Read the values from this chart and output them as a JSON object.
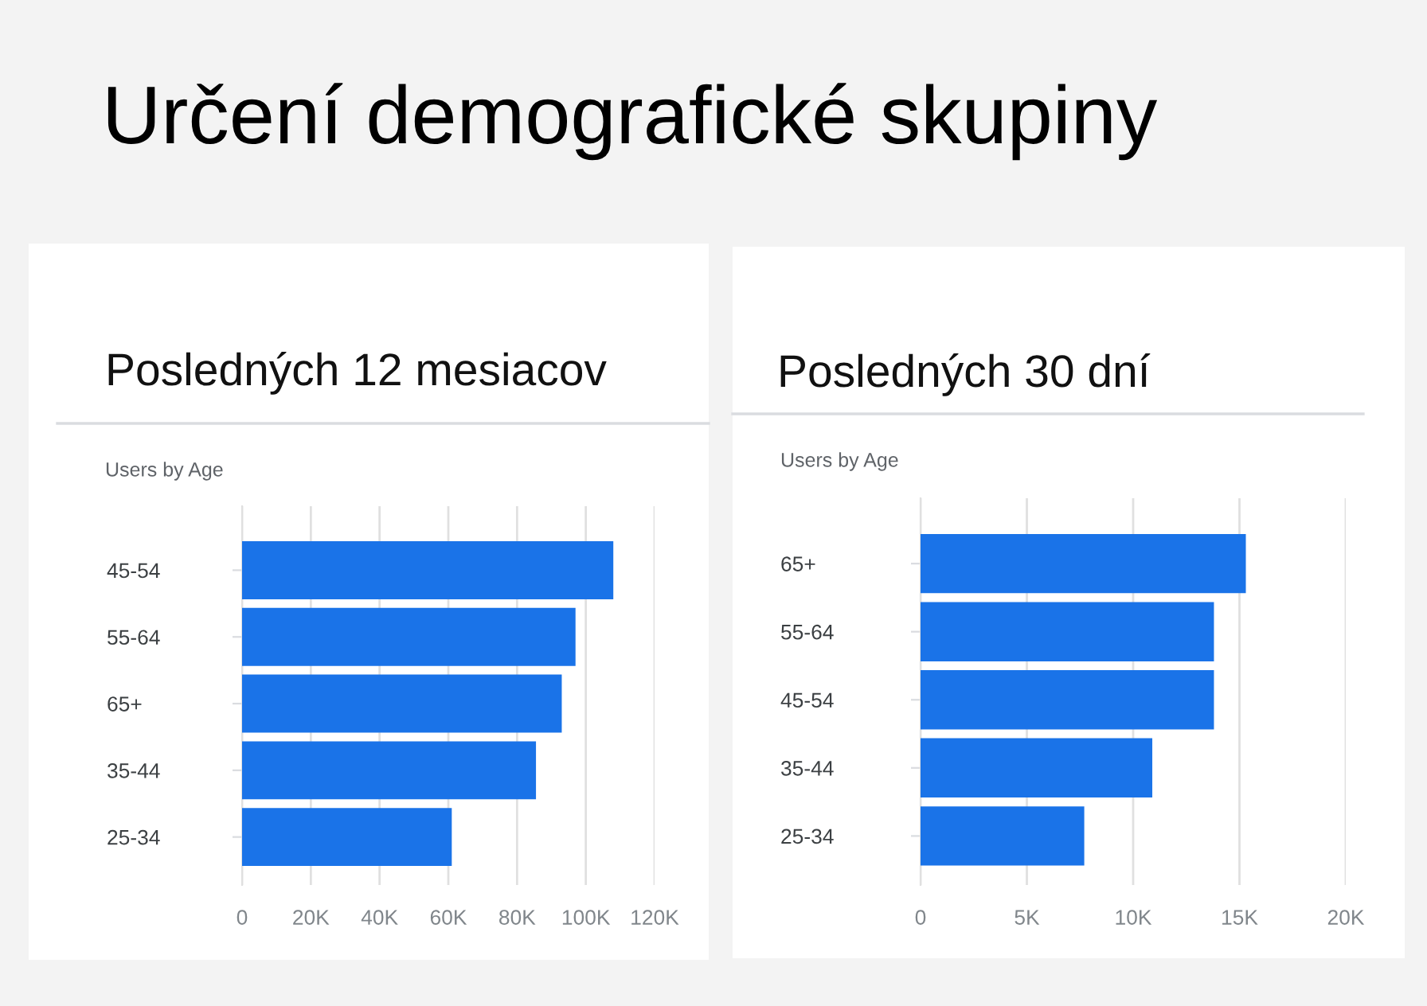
{
  "chart_data": [
    {
      "type": "bar",
      "orientation": "horizontal",
      "title": "Posledných 12 mesiacov",
      "subtitle": "Users by Age",
      "annotations": [
        "Určení demografické skupiny"
      ],
      "categories": [
        "45-54",
        "55-64",
        "65+",
        "35-44",
        "25-34"
      ],
      "values": [
        108000,
        97000,
        93000,
        85500,
        61000
      ],
      "color": "#1a73e8",
      "xlim": [
        0,
        120000
      ],
      "xticks": [
        0,
        {
          "value": 20000,
          "label": "20K"
        },
        {
          "value": 40000,
          "label": "40K"
        },
        {
          "value": 60000,
          "label": "60K"
        },
        {
          "value": 80000,
          "label": "80K"
        },
        {
          "value": 100000,
          "label": "100K"
        },
        {
          "value": 120000,
          "label": "120K"
        }
      ],
      "grid": "x"
    },
    {
      "type": "bar",
      "orientation": "horizontal",
      "title": "Posledných 30 dní",
      "subtitle": "Users by Age",
      "categories": [
        "65+",
        "55-64",
        "45-54",
        "35-44",
        "25-34"
      ],
      "values": [
        15300,
        13800,
        13800,
        10900,
        7700
      ],
      "color": "#1a73e8",
      "xlim": [
        0,
        20000
      ],
      "xticks": [
        0,
        {
          "value": 5000,
          "label": "5K"
        },
        {
          "value": 10000,
          "label": "10K"
        },
        {
          "value": 15000,
          "label": "15K"
        },
        {
          "value": 20000,
          "label": "20K"
        }
      ],
      "grid": "x"
    }
  ]
}
